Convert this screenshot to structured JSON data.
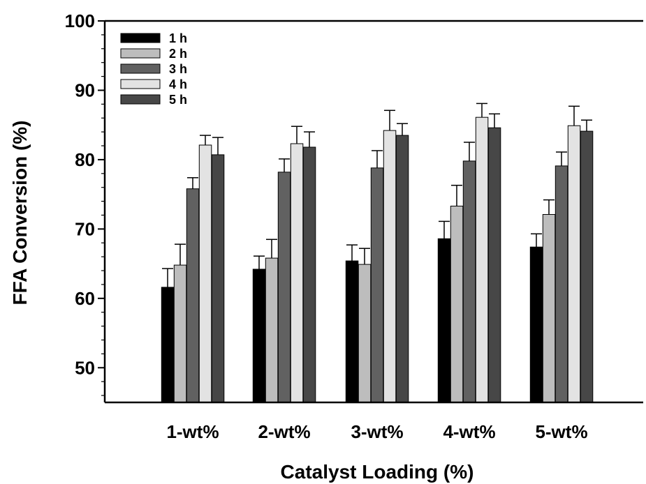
{
  "chart_data": {
    "type": "bar",
    "title": "",
    "xlabel": "Catalyst Loading (%)",
    "ylabel": "FFA Conversion (%)",
    "ylim": [
      45,
      100
    ],
    "yticks": [
      "50",
      "60",
      "70",
      "80",
      "90",
      "100"
    ],
    "categories": [
      "1-wt%",
      "2-wt%",
      "3-wt%",
      "4-wt%",
      "5-wt%"
    ],
    "legend_position": "top-left",
    "grid": false,
    "series": [
      {
        "name": "1 h",
        "color": "#000000",
        "values": [
          61.6,
          64.2,
          65.4,
          68.6,
          67.4
        ],
        "errors": [
          2.7,
          1.9,
          2.3,
          2.5,
          1.9
        ]
      },
      {
        "name": "2 h",
        "color": "#bdbdbd",
        "values": [
          64.8,
          65.8,
          64.9,
          73.3,
          72.1
        ],
        "errors": [
          3.0,
          2.7,
          2.3,
          3.0,
          2.1
        ]
      },
      {
        "name": "3 h",
        "color": "#616161",
        "values": [
          75.8,
          78.2,
          78.8,
          79.8,
          79.1
        ],
        "errors": [
          1.6,
          1.9,
          2.5,
          2.7,
          2.0
        ]
      },
      {
        "name": "4 h",
        "color": "#e3e3e3",
        "values": [
          82.1,
          82.3,
          84.2,
          86.1,
          84.9
        ],
        "errors": [
          1.4,
          2.5,
          2.9,
          2.0,
          2.8
        ]
      },
      {
        "name": "5 h",
        "color": "#474747",
        "values": [
          80.7,
          81.8,
          83.5,
          84.6,
          84.1
        ],
        "errors": [
          2.5,
          2.2,
          1.7,
          2.0,
          1.6
        ]
      }
    ]
  }
}
